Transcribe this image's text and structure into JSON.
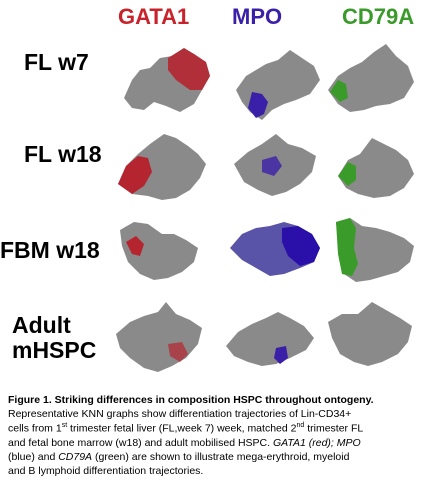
{
  "colors": {
    "GATA1": "#c8232b",
    "MPO": "#3a1fa8",
    "CD79A": "#3a9a2a",
    "base": "#7a7a7a"
  },
  "header": {
    "genes": [
      {
        "label": "GATA1",
        "color": "#c8232b"
      },
      {
        "label": "MPO",
        "color": "#3a1fa8"
      },
      {
        "label": "CD79A",
        "color": "#3a9a2a"
      }
    ]
  },
  "rows": [
    {
      "label": "FL w7"
    },
    {
      "label": "FL w18"
    },
    {
      "label": "FBM w18"
    },
    {
      "label_line1": "Adult",
      "label_line2": "mHSPC"
    }
  ],
  "caption": {
    "title": "Figure 1. Striking differences in composition HSPC throughout ontogeny.",
    "line2": "Representative KNN graphs show differentiation trajectories of Lin-CD34+",
    "line3a": "cells from 1",
    "line3_sup1": "st",
    "line3b": " trimester fetal liver (FL,week 7) week, matched 2",
    "line3_sup2": "nd",
    "line3c": " trimester FL",
    "line4a": "and fetal bone marrow (w18) and adult mobilised HSPC. ",
    "line4_gata": "GATA1 (red); MPO",
    "line5a": "(blue) and ",
    "line5_cd": "CD79A",
    "line5b": " (green) are shown to illustrate mega-erythroid, myeloid",
    "line6": "and B lymphoid differentiation trajectories."
  }
}
